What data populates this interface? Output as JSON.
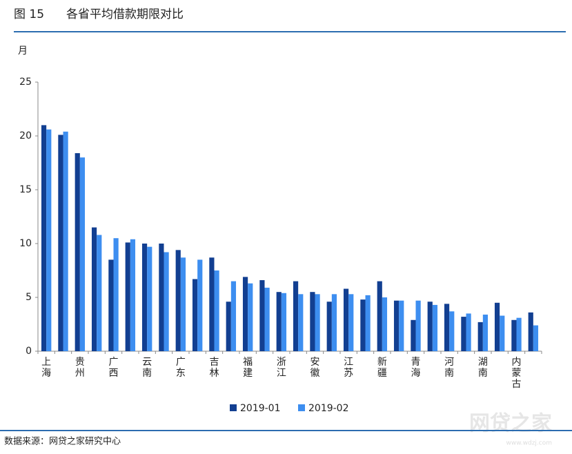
{
  "header": {
    "figure": "图 15",
    "title": "各省平均借款期限对比"
  },
  "chart_data": {
    "type": "bar",
    "title": "各省平均借款期限对比",
    "y_label": "月",
    "categories": [
      "上海",
      null,
      "贵州",
      null,
      "广西",
      null,
      "云南",
      null,
      "广东",
      null,
      "吉林",
      null,
      "福建",
      null,
      "浙江",
      null,
      "安徽",
      null,
      "江苏",
      null,
      "新疆",
      null,
      "青海",
      null,
      "河南",
      null,
      "湖南",
      null,
      "内蒙古",
      null
    ],
    "series": [
      {
        "name": "2019-01",
        "color": "#123f91",
        "values": [
          21.0,
          20.1,
          18.4,
          11.5,
          8.5,
          10.1,
          10.0,
          10.0,
          9.4,
          6.7,
          8.7,
          4.6,
          6.9,
          6.6,
          5.5,
          6.5,
          5.5,
          4.6,
          5.8,
          4.8,
          6.5,
          4.7,
          2.9,
          4.6,
          4.4,
          3.2,
          2.7,
          4.5,
          2.9,
          3.6
        ]
      },
      {
        "name": "2019-02",
        "color": "#3d8ef0",
        "values": [
          20.6,
          20.4,
          18.0,
          10.8,
          10.5,
          10.4,
          9.7,
          9.2,
          8.7,
          8.5,
          7.5,
          6.5,
          6.3,
          5.9,
          5.4,
          5.3,
          5.3,
          5.3,
          5.3,
          5.2,
          5.0,
          4.7,
          4.7,
          4.3,
          3.7,
          3.5,
          3.4,
          3.3,
          3.1,
          2.4
        ]
      }
    ],
    "ylim": [
      0,
      25
    ],
    "yticks": [
      0,
      5,
      10,
      15,
      20,
      25
    ],
    "grid": false,
    "legend": "bottom"
  },
  "footer": {
    "source": "数据来源：网贷之家研究中心",
    "watermark": "网贷之家",
    "watermark_url": "www.wdzj.com"
  }
}
